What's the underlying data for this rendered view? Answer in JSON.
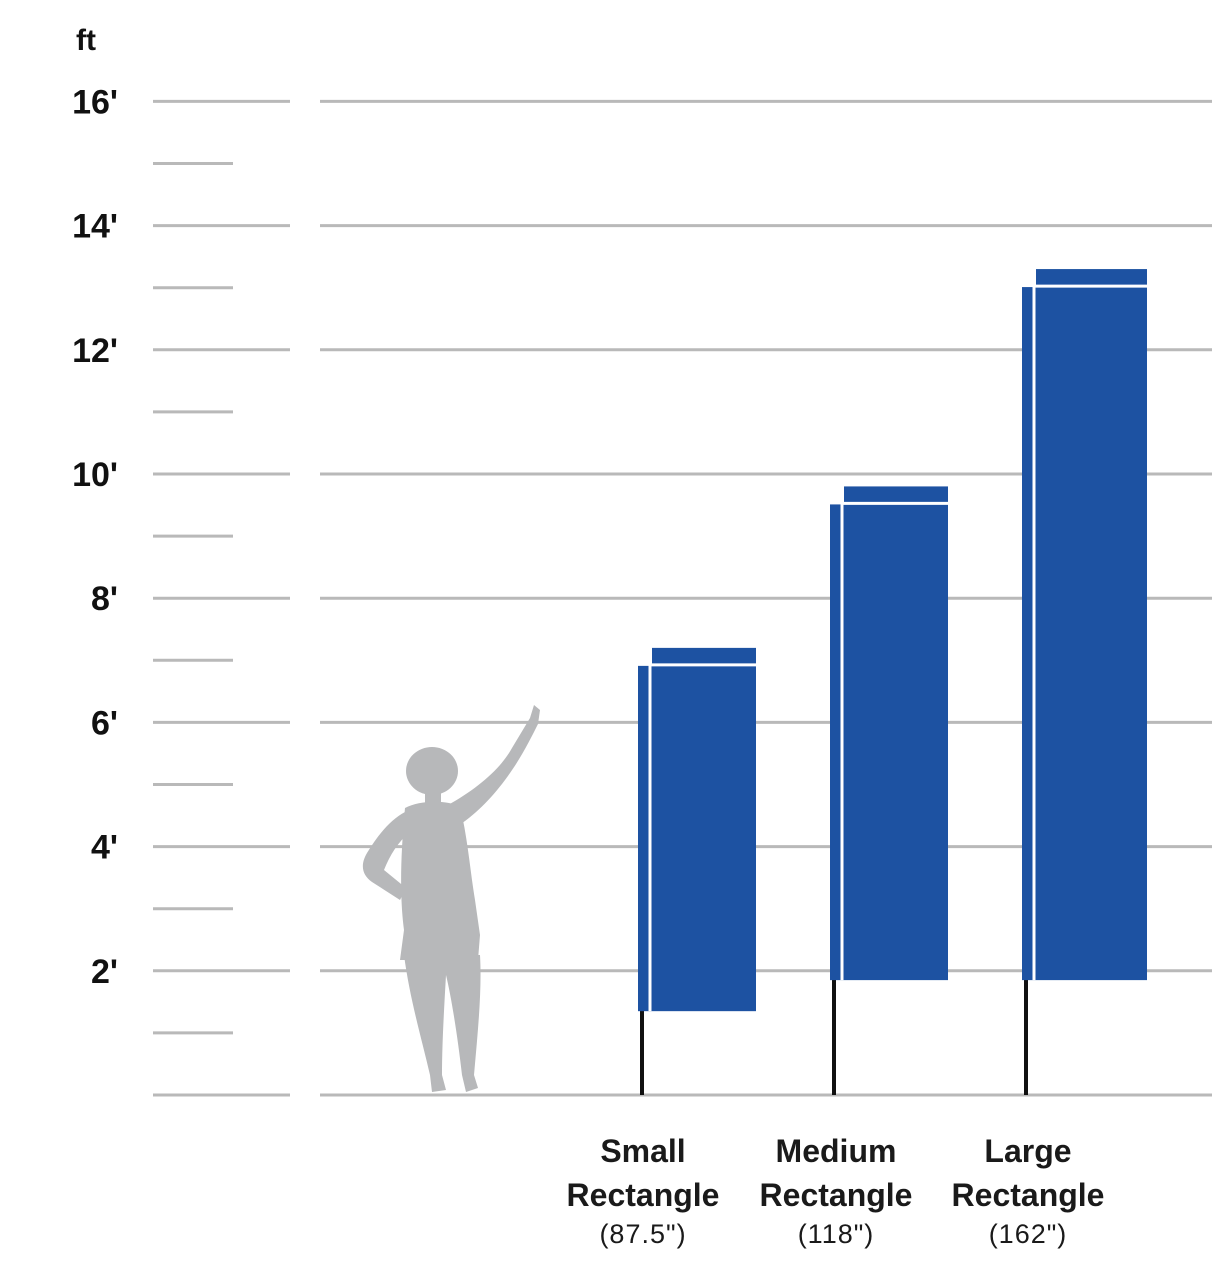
{
  "chart_data": {
    "type": "bar",
    "title": "",
    "ylabel": "ft",
    "xlabel": "",
    "ylim": [
      0,
      16
    ],
    "y_ticks": [
      {
        "value": 16,
        "label": "16'"
      },
      {
        "value": 14,
        "label": "14'"
      },
      {
        "value": 12,
        "label": "12'"
      },
      {
        "value": 10,
        "label": "10'"
      },
      {
        "value": 8,
        "label": "8'"
      },
      {
        "value": 6,
        "label": "6'"
      },
      {
        "value": 4,
        "label": "4'"
      },
      {
        "value": 2,
        "label": "2'"
      }
    ],
    "minor_ticks": [
      1,
      3,
      5,
      7,
      9,
      11,
      13,
      15
    ],
    "grid": true,
    "categories": [
      {
        "id": "small",
        "line1": "Small",
        "line2": "Rectangle",
        "size": "(87.5\")",
        "bottom_ft": 1.35,
        "top_ft": 7.2
      },
      {
        "id": "medium",
        "line1": "Medium",
        "line2": "Rectangle",
        "size": "(118\")",
        "bottom_ft": 1.85,
        "top_ft": 9.8
      },
      {
        "id": "large",
        "line1": "Large",
        "line2": "Rectangle",
        "size": "(162\")",
        "bottom_ft": 1.85,
        "top_ft": 13.3
      }
    ],
    "reference_figure": {
      "description": "person silhouette",
      "height_ft": 5.8
    },
    "colors": {
      "bar": "#1d52a2",
      "grid": "#b9b9b9",
      "figure": "#b7b8ba",
      "pole": "#111111"
    }
  }
}
